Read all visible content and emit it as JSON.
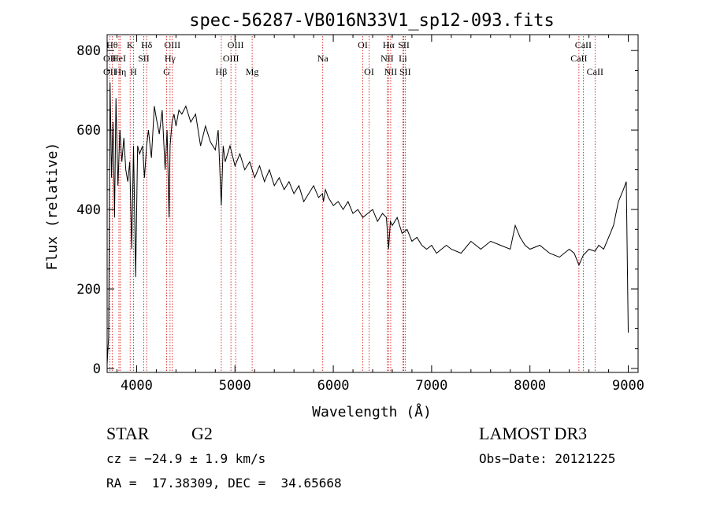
{
  "chart_data": {
    "type": "line",
    "title": "spec-56287-VB016N33V1_sp12-093.fits",
    "xlabel": "Wavelength (Å)",
    "ylabel": "Flux (relative)",
    "xlim": [
      3700,
      9100
    ],
    "ylim": [
      -10,
      840
    ],
    "x_ticks": [
      4000,
      5000,
      6000,
      7000,
      8000,
      9000
    ],
    "x_tick_labels": [
      "4000",
      "5000",
      "6000",
      "7000",
      "8000",
      "9000"
    ],
    "y_ticks": [
      0,
      200,
      400,
      600,
      800
    ],
    "y_tick_labels": [
      "0",
      "200",
      "400",
      "600",
      "800"
    ],
    "grid": false,
    "line_color": "#000000",
    "marker_color": "#cc0000",
    "series": [
      {
        "name": "flux",
        "x": [
          3700,
          3715,
          3730,
          3745,
          3760,
          3775,
          3790,
          3810,
          3830,
          3850,
          3870,
          3890,
          3910,
          3930,
          3950,
          3968,
          3990,
          4010,
          4030,
          4060,
          4080,
          4101,
          4120,
          4150,
          4180,
          4200,
          4230,
          4260,
          4290,
          4310,
          4330,
          4340,
          4360,
          4380,
          4400,
          4430,
          4460,
          4500,
          4550,
          4600,
          4650,
          4700,
          4750,
          4800,
          4830,
          4861,
          4880,
          4900,
          4950,
          5000,
          5050,
          5100,
          5150,
          5200,
          5250,
          5300,
          5350,
          5400,
          5450,
          5500,
          5550,
          5600,
          5650,
          5700,
          5750,
          5800,
          5850,
          5890,
          5900,
          5920,
          5950,
          6000,
          6050,
          6100,
          6150,
          6200,
          6250,
          6300,
          6350,
          6400,
          6450,
          6500,
          6540,
          6563,
          6580,
          6600,
          6650,
          6700,
          6750,
          6800,
          6850,
          6900,
          6950,
          7000,
          7050,
          7100,
          7150,
          7200,
          7300,
          7400,
          7500,
          7600,
          7700,
          7800,
          7850,
          7900,
          7950,
          8000,
          8100,
          8200,
          8300,
          8400,
          8450,
          8498,
          8542,
          8600,
          8662,
          8700,
          8750,
          8800,
          8850,
          8900,
          8950,
          8980,
          9000
        ],
        "y": [
          10,
          80,
          720,
          480,
          620,
          380,
          680,
          460,
          600,
          520,
          580,
          500,
          470,
          520,
          300,
          560,
          230,
          560,
          540,
          560,
          480,
          560,
          600,
          530,
          660,
          630,
          590,
          650,
          500,
          600,
          380,
          560,
          620,
          640,
          610,
          650,
          640,
          660,
          620,
          640,
          560,
          610,
          570,
          550,
          600,
          410,
          560,
          520,
          560,
          510,
          540,
          500,
          520,
          480,
          510,
          470,
          500,
          460,
          480,
          450,
          470,
          440,
          460,
          420,
          440,
          460,
          430,
          440,
          420,
          450,
          430,
          410,
          420,
          400,
          420,
          390,
          400,
          380,
          390,
          400,
          370,
          390,
          380,
          300,
          370,
          360,
          380,
          340,
          350,
          320,
          330,
          310,
          300,
          310,
          290,
          300,
          310,
          300,
          290,
          320,
          300,
          320,
          310,
          300,
          360,
          330,
          310,
          300,
          310,
          290,
          280,
          300,
          290,
          260,
          285,
          300,
          295,
          310,
          300,
          330,
          360,
          420,
          450,
          470,
          90
        ]
      }
    ],
    "line_markers": [
      {
        "label": "OII",
        "wavelength": 3727,
        "tier": 2
      },
      {
        "label": "Hθ",
        "wavelength": 3751,
        "tier": 1
      },
      {
        "label": "OII",
        "wavelength": 3727,
        "tier": 3
      },
      {
        "label": "HeI",
        "wavelength": 3820,
        "tier": 2
      },
      {
        "label": "Hη",
        "wavelength": 3835,
        "tier": 3
      },
      {
        "label": "K",
        "wavelength": 3934,
        "tier": 1
      },
      {
        "label": "H",
        "wavelength": 3968,
        "tier": 3
      },
      {
        "label": "SII",
        "wavelength": 4072,
        "tier": 2
      },
      {
        "label": "Hδ",
        "wavelength": 4102,
        "tier": 1
      },
      {
        "label": "G",
        "wavelength": 4305,
        "tier": 3
      },
      {
        "label": "OIII",
        "wavelength": 4363,
        "tier": 1
      },
      {
        "label": "Hγ",
        "wavelength": 4340,
        "tier": 2
      },
      {
        "label": "Hβ",
        "wavelength": 4861,
        "tier": 3
      },
      {
        "label": "OIII",
        "wavelength": 4959,
        "tier": 2
      },
      {
        "label": "OIII",
        "wavelength": 5007,
        "tier": 1
      },
      {
        "label": "Mg",
        "wavelength": 5175,
        "tier": 3
      },
      {
        "label": "Na",
        "wavelength": 5893,
        "tier": 2
      },
      {
        "label": "OI",
        "wavelength": 6300,
        "tier": 1
      },
      {
        "label": "OI",
        "wavelength": 6364,
        "tier": 3
      },
      {
        "label": "Hα",
        "wavelength": 6563,
        "tier": 1
      },
      {
        "label": "NII",
        "wavelength": 6548,
        "tier": 2
      },
      {
        "label": "NII",
        "wavelength": 6584,
        "tier": 3
      },
      {
        "label": "SII",
        "wavelength": 6717,
        "tier": 1
      },
      {
        "label": "Li",
        "wavelength": 6708,
        "tier": 2
      },
      {
        "label": "SII",
        "wavelength": 6731,
        "tier": 3
      },
      {
        "label": "CaII",
        "wavelength": 8542,
        "tier": 1
      },
      {
        "label": "CaII",
        "wavelength": 8498,
        "tier": 2
      },
      {
        "label": "CaII",
        "wavelength": 8662,
        "tier": 3
      }
    ],
    "marker_lines": [
      3727,
      3751,
      3820,
      3835,
      3934,
      3968,
      4072,
      4102,
      4305,
      4340,
      4363,
      4861,
      4959,
      5007,
      5175,
      5893,
      6300,
      6364,
      6548,
      6563,
      6584,
      6708,
      6717,
      6731,
      8498,
      8542,
      8662
    ]
  },
  "info": {
    "object_class": "STAR",
    "subclass": "G2",
    "survey": "LAMOST DR3",
    "redshift_line": "cz = −24.9 ± 1.9 km/s",
    "obs_date": "Obs−Date: 20121225",
    "coords": "RA =  17.38309, DEC =  34.65668"
  }
}
